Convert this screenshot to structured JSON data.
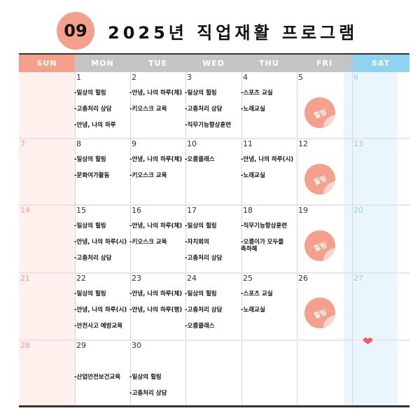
{
  "header": {
    "month": "09",
    "title": "2025년 직업재활 프로그램"
  },
  "colors": {
    "sun": "#f5a08c",
    "weekday_header": "#c4c4c4",
    "sat": "#8fd3f0",
    "sun_num": "#f4a090",
    "sat_num": "#8dd0ef",
    "weekday_num": "#333333"
  },
  "weekdays": [
    "SUN",
    "MON",
    "TUE",
    "WED",
    "THU",
    "FRI",
    "SAT"
  ],
  "sticker_label": "힐링",
  "heart_icon": "heart",
  "weeks": [
    [
      {
        "d": ""
      },
      {
        "d": "1",
        "events": [
          "-일상의 힐링",
          "-고충처리 상담",
          "-안녕, 나의 하루"
        ]
      },
      {
        "d": "2",
        "events": [
          "-안녕, 나의 하루(체)",
          "-키오스크 교육"
        ]
      },
      {
        "d": "3",
        "events": [
          "-일상의 힐링",
          "-고충처리 상담",
          "-직무기능향상훈련"
        ]
      },
      {
        "d": "4",
        "events": [
          "-스포츠 교실",
          "-노래교실"
        ]
      },
      {
        "d": "5",
        "sticker": true
      },
      {
        "d": "6"
      }
    ],
    [
      {
        "d": "7"
      },
      {
        "d": "8",
        "events": [
          "-일상의 힐링",
          "-문화여가활동"
        ]
      },
      {
        "d": "9",
        "events": [
          "-안녕, 나의 하루(체)",
          "-키오스크 교육"
        ]
      },
      {
        "d": "10",
        "events": [
          "-오름클래스"
        ]
      },
      {
        "d": "11",
        "events": [
          "-안녕, 나의 하루(시)",
          "-노래교실"
        ]
      },
      {
        "d": "12",
        "sticker": true
      },
      {
        "d": "13"
      }
    ],
    [
      {
        "d": "14"
      },
      {
        "d": "15",
        "events": [
          "-일상의 힐링",
          "-안녕, 나의 하루(시)",
          "-고충처리 상담"
        ]
      },
      {
        "d": "16",
        "events": [
          "-안녕, 나의 하루(체)",
          "-키오스크 교육"
        ]
      },
      {
        "d": "17",
        "events": [
          "-일상의 힐링",
          "-자치회의",
          "-고충처리 상담"
        ]
      },
      {
        "d": "18",
        "events": [
          "-직무기능향상훈련",
          "-오름이가 모두를\n축하해"
        ]
      },
      {
        "d": "19",
        "sticker": true
      },
      {
        "d": "20"
      }
    ],
    [
      {
        "d": "21"
      },
      {
        "d": "22",
        "events": [
          "-일상의 힐링",
          "-안녕, 나의 하루(시)",
          "-안전사고 예방교육"
        ]
      },
      {
        "d": "23",
        "events": [
          "-안녕, 나의 하루(체)",
          "-안녕, 나의 하루(평)"
        ]
      },
      {
        "d": "24",
        "events": [
          "-일상의 힐링",
          "-고충처리 상담",
          "-오름클래스"
        ]
      },
      {
        "d": "25",
        "events": [
          "-스포츠 교실",
          "-노래교실"
        ]
      },
      {
        "d": "26",
        "sticker": true
      },
      {
        "d": "27"
      }
    ],
    [
      {
        "d": "28"
      },
      {
        "d": "29",
        "events": [
          "",
          "-산업안전보건교육"
        ]
      },
      {
        "d": "30",
        "events": [
          "",
          "-일상의 힐링",
          "-고충처리 상담"
        ]
      },
      {
        "d": ""
      },
      {
        "d": ""
      },
      {
        "d": ""
      },
      {
        "d": ""
      }
    ]
  ]
}
